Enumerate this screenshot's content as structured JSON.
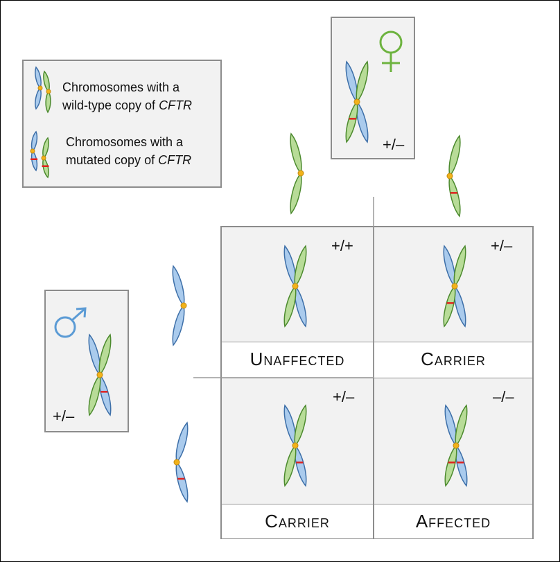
{
  "legend": {
    "wild_type_line1": "Chromosomes with a",
    "wild_type_line2_prefix": "wild-type copy of ",
    "wild_type_gene": "CFTR",
    "mutated_line1": "Chromosomes with a",
    "mutated_line2_prefix": "mutated copy of ",
    "mutated_gene": "CFTR"
  },
  "female": {
    "symbol": "♀",
    "genotype": "+/–"
  },
  "male": {
    "symbol": "♂",
    "genotype": "+/–"
  },
  "cells": [
    {
      "genotype": "+/+",
      "label": "Unaffected"
    },
    {
      "genotype": "+/–",
      "label": "Carrier"
    },
    {
      "genotype": "+/–",
      "label": "Carrier"
    },
    {
      "genotype": "–/–",
      "label": "Affected"
    }
  ],
  "colors": {
    "blue_fill": "#aacbed",
    "blue_stroke": "#3d6fa8",
    "green_fill": "#b8dc98",
    "green_stroke": "#4c8a2e",
    "centromere": "#f1b21a",
    "mutation": "#e0201c",
    "female_symbol": "#6db33f",
    "male_symbol": "#5b9bd5"
  }
}
